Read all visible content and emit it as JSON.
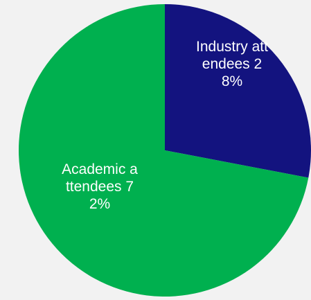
{
  "chart_data": {
    "type": "pie",
    "categories": [
      "Industry attendees",
      "Academic attendees"
    ],
    "values": [
      28,
      72
    ],
    "value_labels": [
      "28%",
      "72%"
    ],
    "colors": [
      "#13137f",
      "#00b04f"
    ]
  }
}
